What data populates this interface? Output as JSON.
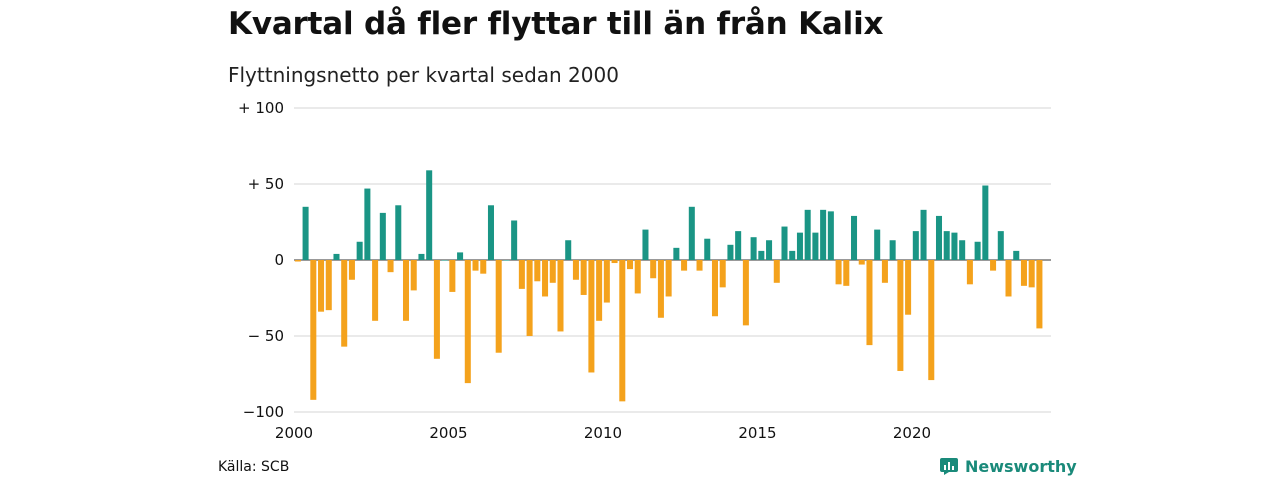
{
  "title": "Kvartal då fler flyttar till än från Kalix",
  "subtitle": "Flyttningsnetto per kvartal sedan 2000",
  "source": "Källa: SCB",
  "brand": "Newsworthy",
  "colors": {
    "positive": "#1a9585",
    "negative": "#f4a21c",
    "grid": "#dddddd",
    "baseline": "#333333"
  },
  "chart_data": {
    "type": "bar",
    "title": "Kvartal då fler flyttar till än från Kalix",
    "subtitle": "Flyttningsnetto per kvartal sedan 2000",
    "xlabel": "",
    "ylabel": "",
    "ylim": [
      -100,
      100
    ],
    "yticks": [
      100,
      50,
      0,
      -50,
      -100
    ],
    "ytick_labels": [
      "+ 100",
      "+  50",
      "0",
      "− 50",
      "−100"
    ],
    "xlim": [
      2000,
      2024.5
    ],
    "xticks": [
      2000,
      2005,
      2010,
      2015,
      2020
    ],
    "xtick_labels": [
      "2000",
      "2005",
      "2010",
      "2015",
      "2020"
    ],
    "grid": true,
    "legend": "none",
    "start_year": 2000,
    "values": [
      -1,
      35,
      -92,
      -34,
      -33,
      4,
      -57,
      -13,
      12,
      47,
      -40,
      31,
      -8,
      36,
      -40,
      -20,
      4,
      59,
      -65,
      0,
      -21,
      5,
      -81,
      -7,
      -9,
      36,
      -61,
      0,
      26,
      -19,
      -50,
      -14,
      -24,
      -15,
      -47,
      13,
      -13,
      -23,
      -74,
      -40,
      -28,
      -2,
      -93,
      -6,
      -22,
      20,
      -12,
      -38,
      -24,
      8,
      -7,
      35,
      -7,
      14,
      -37,
      -18,
      10,
      19,
      -43,
      15,
      6,
      13,
      -15,
      22,
      6,
      18,
      33,
      18,
      33,
      32,
      -16,
      -17,
      29,
      -3,
      -56,
      20,
      -15,
      13,
      -73,
      -36,
      19,
      33,
      -79,
      29,
      19,
      18,
      13,
      -16,
      12,
      49,
      -7,
      19,
      -24,
      6,
      -17,
      -18,
      -45
    ]
  }
}
